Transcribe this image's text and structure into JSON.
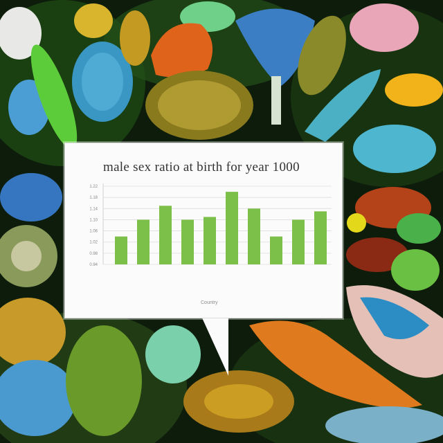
{
  "chart_data": {
    "type": "bar",
    "title": "male sex ratio at birth for year 1000",
    "caption": "",
    "xlabel": "Country",
    "ylabel": "",
    "categories": [
      "",
      "",
      "",
      "",
      "",
      "",
      "",
      "",
      "",
      ""
    ],
    "values": [
      1.04,
      1.1,
      1.15,
      1.1,
      1.11,
      1.2,
      1.14,
      1.04,
      1.1,
      1.13
    ],
    "yticks": [
      0.94,
      0.98,
      1.02,
      1.06,
      1.1,
      1.14,
      1.18,
      1.22
    ],
    "ylim": [
      0.94,
      1.23
    ],
    "grid": true,
    "legend": "none",
    "bar_color": "#7cc04a"
  }
}
